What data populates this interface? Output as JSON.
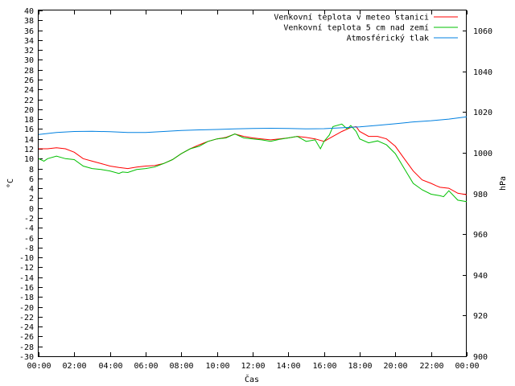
{
  "chart_data": {
    "type": "line",
    "xlabel": "Čas",
    "ylabel_left": "°C",
    "ylabel_right": "hPa",
    "x_ticks": [
      "00:00",
      "02:00",
      "04:00",
      "06:00",
      "08:00",
      "10:00",
      "12:00",
      "14:00",
      "16:00",
      "18:00",
      "20:00",
      "22:00",
      "00:00"
    ],
    "x_range": [
      0,
      24
    ],
    "ylim_left": [
      -30,
      40
    ],
    "ylim_right": [
      900,
      1070
    ],
    "y_ticks_left": [
      40,
      38,
      36,
      34,
      32,
      30,
      28,
      26,
      24,
      22,
      20,
      18,
      16,
      14,
      12,
      10,
      8,
      6,
      4,
      2,
      0,
      -2,
      -4,
      -6,
      -8,
      -10,
      -12,
      -14,
      -16,
      -18,
      -20,
      -22,
      -24,
      -26,
      -28,
      -30
    ],
    "y_ticks_right": [
      1060,
      1040,
      1020,
      1000,
      980,
      960,
      940,
      920,
      900
    ],
    "legend_position": "top-right",
    "series": [
      {
        "name": "Venkovní teplota v meteo stanici",
        "color": "#ff0000",
        "axis": "left",
        "x": [
          0,
          0.5,
          1,
          1.5,
          2,
          2.5,
          3,
          3.5,
          4,
          4.5,
          5,
          5.5,
          6,
          6.5,
          7,
          7.5,
          8,
          8.5,
          9,
          9.5,
          10,
          10.5,
          11,
          11.5,
          12,
          12.5,
          13,
          13.5,
          14,
          14.5,
          15,
          15.5,
          16,
          16.5,
          17,
          17.5,
          17.8,
          18,
          18.5,
          19,
          19.5,
          20,
          20.5,
          21,
          21.5,
          22,
          22.3,
          22.5,
          23,
          23.5,
          24
        ],
        "values": [
          12,
          12,
          12.2,
          12,
          11.3,
          10,
          9.5,
          9,
          8.5,
          8.2,
          8,
          8.3,
          8.5,
          8.6,
          9,
          9.8,
          11,
          12,
          12.8,
          13.5,
          14,
          14.3,
          15,
          14.5,
          14.2,
          14,
          13.8,
          14,
          14.2,
          14.5,
          14.3,
          14,
          13.5,
          14.5,
          15.5,
          16.3,
          16.5,
          15.5,
          14.5,
          14.5,
          14,
          12.5,
          10,
          7.5,
          5.7,
          5,
          4.5,
          4.2,
          4,
          3,
          2.7
        ]
      },
      {
        "name": "Venkovní teplota 5 cm nad zemí",
        "color": "#00c000",
        "axis": "left",
        "x": [
          0,
          0.3,
          0.5,
          1,
          1.5,
          2,
          2.5,
          3,
          3.5,
          4,
          4.5,
          4.7,
          5,
          5.5,
          6,
          6.5,
          7,
          7.5,
          8,
          8.5,
          9,
          9.5,
          10,
          10.5,
          11,
          11.5,
          12,
          12.5,
          13,
          13.5,
          14,
          14.5,
          15,
          15.5,
          15.8,
          16,
          16.3,
          16.5,
          17,
          17.3,
          17.5,
          17.8,
          18,
          18.5,
          19,
          19.5,
          20,
          20.5,
          21,
          21.5,
          22,
          22.5,
          22.7,
          23,
          23.5,
          24
        ],
        "values": [
          10,
          9.5,
          10,
          10.5,
          10,
          9.8,
          8.5,
          8,
          7.8,
          7.5,
          7,
          7.3,
          7.2,
          7.8,
          8,
          8.3,
          9,
          9.8,
          11,
          12,
          12.5,
          13.5,
          14,
          14.2,
          15,
          14.2,
          14,
          13.8,
          13.5,
          13.9,
          14.2,
          14.5,
          13.5,
          13.8,
          12,
          13.5,
          14.8,
          16.5,
          17,
          16,
          16.7,
          15.5,
          14,
          13.2,
          13.6,
          12.8,
          11,
          8,
          5,
          3.7,
          2.8,
          2.5,
          2.3,
          3.5,
          1.6,
          1.3
        ]
      },
      {
        "name": "Atmosférický tlak",
        "color": "#0080e0",
        "axis": "right",
        "x": [
          0,
          1,
          2,
          3,
          4,
          5,
          6,
          7,
          8,
          9,
          10,
          11,
          12,
          13,
          14,
          15,
          16,
          17,
          18,
          19,
          20,
          21,
          22,
          23,
          24
        ],
        "values": [
          1009,
          1010,
          1010.5,
          1010.6,
          1010.4,
          1010,
          1010,
          1010.5,
          1011,
          1011.3,
          1011.5,
          1011.8,
          1012,
          1012.1,
          1012,
          1011.8,
          1011.9,
          1012.3,
          1012.8,
          1013.5,
          1014.3,
          1015.2,
          1015.8,
          1016.6,
          1017.7
        ]
      }
    ]
  }
}
